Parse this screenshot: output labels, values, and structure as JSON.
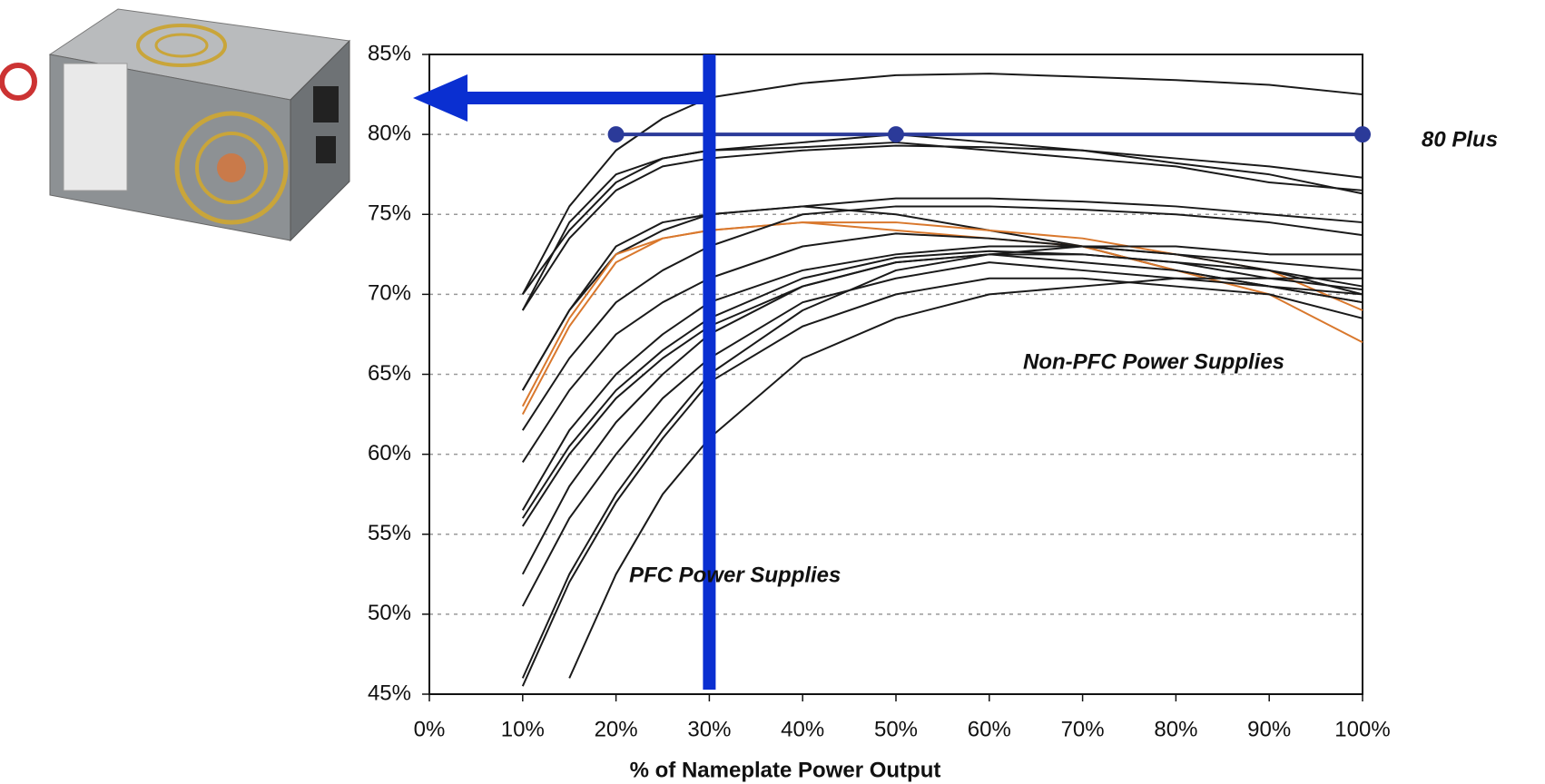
{
  "chart_data": {
    "type": "line",
    "x_label": "% of Nameplate Power Output",
    "x": [
      10,
      15,
      20,
      25,
      30,
      40,
      50,
      60,
      70,
      80,
      90,
      100
    ],
    "series": [
      {
        "color": "#1a1a1a",
        "values": [
          70,
          75.5,
          79,
          81,
          82.3,
          83.2,
          83.7,
          83.8,
          83.6,
          83.4,
          83.1,
          82.5
        ]
      },
      {
        "color": "#1a1a1a",
        "values": [
          69,
          74.5,
          77.5,
          78.5,
          79,
          79.5,
          80,
          79.5,
          79,
          78.5,
          78,
          77.3
        ]
      },
      {
        "color": "#1a1a1a",
        "values": [
          70,
          74,
          77,
          78.5,
          79,
          79.2,
          79.5,
          79,
          78.5,
          78,
          77,
          76.5
        ]
      },
      {
        "color": "#1a1a1a",
        "values": [
          69,
          73.5,
          76.5,
          78,
          78.5,
          79,
          79.3,
          79.2,
          79,
          78.2,
          77.5,
          76.3
        ]
      },
      {
        "color": "#1a1a1a",
        "values": [
          64,
          69,
          72.5,
          74,
          75,
          75.5,
          76,
          76,
          75.8,
          75.5,
          75,
          74.5
        ]
      },
      {
        "color": "#1a1a1a",
        "values": [
          64,
          69,
          73,
          74.5,
          75,
          75.5,
          75,
          74,
          73,
          71.5,
          70.5,
          69.5
        ]
      },
      {
        "color": "#d9782d",
        "values": [
          62.5,
          68,
          72,
          73.5,
          74,
          74.5,
          74.5,
          74,
          73.5,
          72.5,
          71.5,
          69
        ]
      },
      {
        "color": "#d9782d",
        "values": [
          63,
          68.5,
          72.5,
          73.5,
          74,
          74.5,
          74,
          73.5,
          73,
          71.5,
          70,
          67
        ]
      },
      {
        "color": "#1a1a1a",
        "values": [
          61.5,
          66,
          69.5,
          71.5,
          73,
          75,
          75.5,
          75.5,
          75.3,
          75,
          74.5,
          73.7
        ]
      },
      {
        "color": "#1a1a1a",
        "values": [
          59.5,
          64,
          67.5,
          69.5,
          71,
          73,
          73.8,
          73.5,
          73,
          72.5,
          72,
          71.5
        ]
      },
      {
        "color": "#1a1a1a",
        "values": [
          56.5,
          61.5,
          65,
          67.5,
          69.5,
          71.5,
          72.5,
          73,
          73,
          72.5,
          71.5,
          70
        ]
      },
      {
        "color": "#1a1a1a",
        "values": [
          56,
          60.5,
          64,
          66.5,
          68.5,
          71,
          72.3,
          72.7,
          72.5,
          72,
          71,
          70.3
        ]
      },
      {
        "color": "#1a1a1a",
        "values": [
          55.5,
          60,
          63.5,
          66,
          68,
          70.5,
          72,
          72.5,
          72.5,
          72,
          71.5,
          70.5
        ]
      },
      {
        "color": "#1a1a1a",
        "values": [
          52.5,
          58,
          62,
          65,
          67.5,
          70.5,
          72,
          72.5,
          72,
          71.5,
          70.5,
          69.5
        ]
      },
      {
        "color": "#1a1a1a",
        "values": [
          50.5,
          56,
          60,
          63.5,
          66,
          69.5,
          71,
          72,
          71.5,
          71,
          70.5,
          70
        ]
      },
      {
        "color": "#1a1a1a",
        "values": [
          46,
          52.5,
          57.5,
          61.5,
          65,
          69,
          71.5,
          72.5,
          73,
          73,
          72.5,
          72.5
        ]
      },
      {
        "color": "#1a1a1a",
        "values": [
          45.5,
          52,
          57,
          61,
          64.5,
          68,
          70,
          71,
          71,
          70.5,
          70,
          68.5
        ]
      },
      {
        "color": "#1a1a1a",
        "values": [
          null,
          46,
          52.5,
          57.5,
          61,
          66,
          68.5,
          70,
          70.5,
          71,
          71,
          71
        ]
      }
    ],
    "reference": {
      "label": "80 Plus",
      "color": "#2b3a99",
      "x": [
        20,
        50,
        100
      ],
      "values": [
        80,
        80,
        80
      ]
    },
    "highlight_x": 30,
    "highlight_color": "#0a2fd1",
    "annotations": [
      "Non-PFC Power Supplies",
      "PFC Power Supplies"
    ],
    "xlim": [
      0,
      100
    ],
    "xticks": [
      {
        "value": 0,
        "label": "0%"
      },
      {
        "value": 10,
        "label": "10%"
      },
      {
        "value": 20,
        "label": "20%"
      },
      {
        "value": 30,
        "label": "30%"
      },
      {
        "value": 40,
        "label": "40%"
      },
      {
        "value": 50,
        "label": "50%"
      },
      {
        "value": 60,
        "label": "60%"
      },
      {
        "value": 70,
        "label": "70%"
      },
      {
        "value": 80,
        "label": "80%"
      },
      {
        "value": 90,
        "label": "90%"
      },
      {
        "value": 100,
        "label": "100%"
      }
    ],
    "ylim": [
      45,
      85
    ],
    "yticks": [
      {
        "value": 45,
        "label": "45%"
      },
      {
        "value": 50,
        "label": "50%"
      },
      {
        "value": 55,
        "label": "55%"
      },
      {
        "value": 60,
        "label": "60%"
      },
      {
        "value": 65,
        "label": "65%"
      },
      {
        "value": 70,
        "label": "70%"
      },
      {
        "value": 75,
        "label": "75%"
      },
      {
        "value": 80,
        "label": "80%"
      },
      {
        "value": 85,
        "label": "85%"
      }
    ],
    "grid": true
  }
}
